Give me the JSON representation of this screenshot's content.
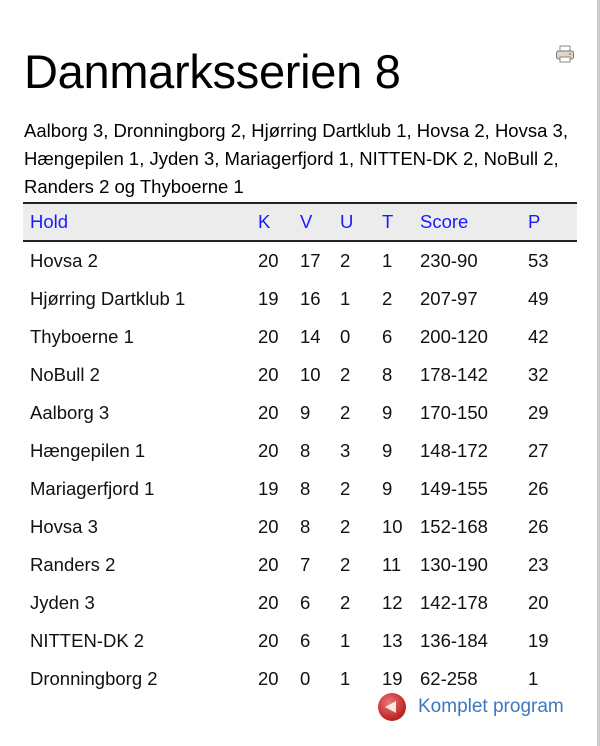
{
  "title": "Danmarksserien 8",
  "teams_text": "Aalborg 3, Dronningborg 2, Hjørring Dartklub 1, Hovsa 2, Hovsa 3, Hængepilen 1, Jyden 3, Mariagerfjord 1, NITTEN-DK 2, NoBull 2, Randers 2 og Thyboerne 1",
  "print_icon": "printer-icon",
  "table": {
    "headers": [
      "Hold",
      "K",
      "V",
      "U",
      "T",
      "Score",
      "P"
    ],
    "rows": [
      [
        "Hovsa 2",
        "20",
        "17",
        "2",
        "1",
        "230-90",
        "53"
      ],
      [
        "Hjørring Dartklub 1",
        "19",
        "16",
        "1",
        "2",
        "207-97",
        "49"
      ],
      [
        "Thyboerne 1",
        "20",
        "14",
        "0",
        "6",
        "200-120",
        "42"
      ],
      [
        "NoBull 2",
        "20",
        "10",
        "2",
        "8",
        "178-142",
        "32"
      ],
      [
        "Aalborg 3",
        "20",
        "9",
        "2",
        "9",
        "170-150",
        "29"
      ],
      [
        "Hængepilen 1",
        "20",
        "8",
        "3",
        "9",
        "148-172",
        "27"
      ],
      [
        "Mariagerfjord 1",
        "19",
        "8",
        "2",
        "9",
        "149-155",
        "26"
      ],
      [
        "Hovsa 3",
        "20",
        "8",
        "2",
        "10",
        "152-168",
        "26"
      ],
      [
        "Randers 2",
        "20",
        "7",
        "2",
        "11",
        "130-190",
        "23"
      ],
      [
        "Jyden 3",
        "20",
        "6",
        "2",
        "12",
        "142-178",
        "20"
      ],
      [
        "NITTEN-DK 2",
        "20",
        "6",
        "1",
        "13",
        "136-184",
        "19"
      ],
      [
        "Dronningborg 2",
        "20",
        "0",
        "1",
        "19",
        "62-258",
        "1"
      ]
    ]
  },
  "footer": {
    "link_label": "Komplet program",
    "icon": "back-arrow-icon"
  }
}
